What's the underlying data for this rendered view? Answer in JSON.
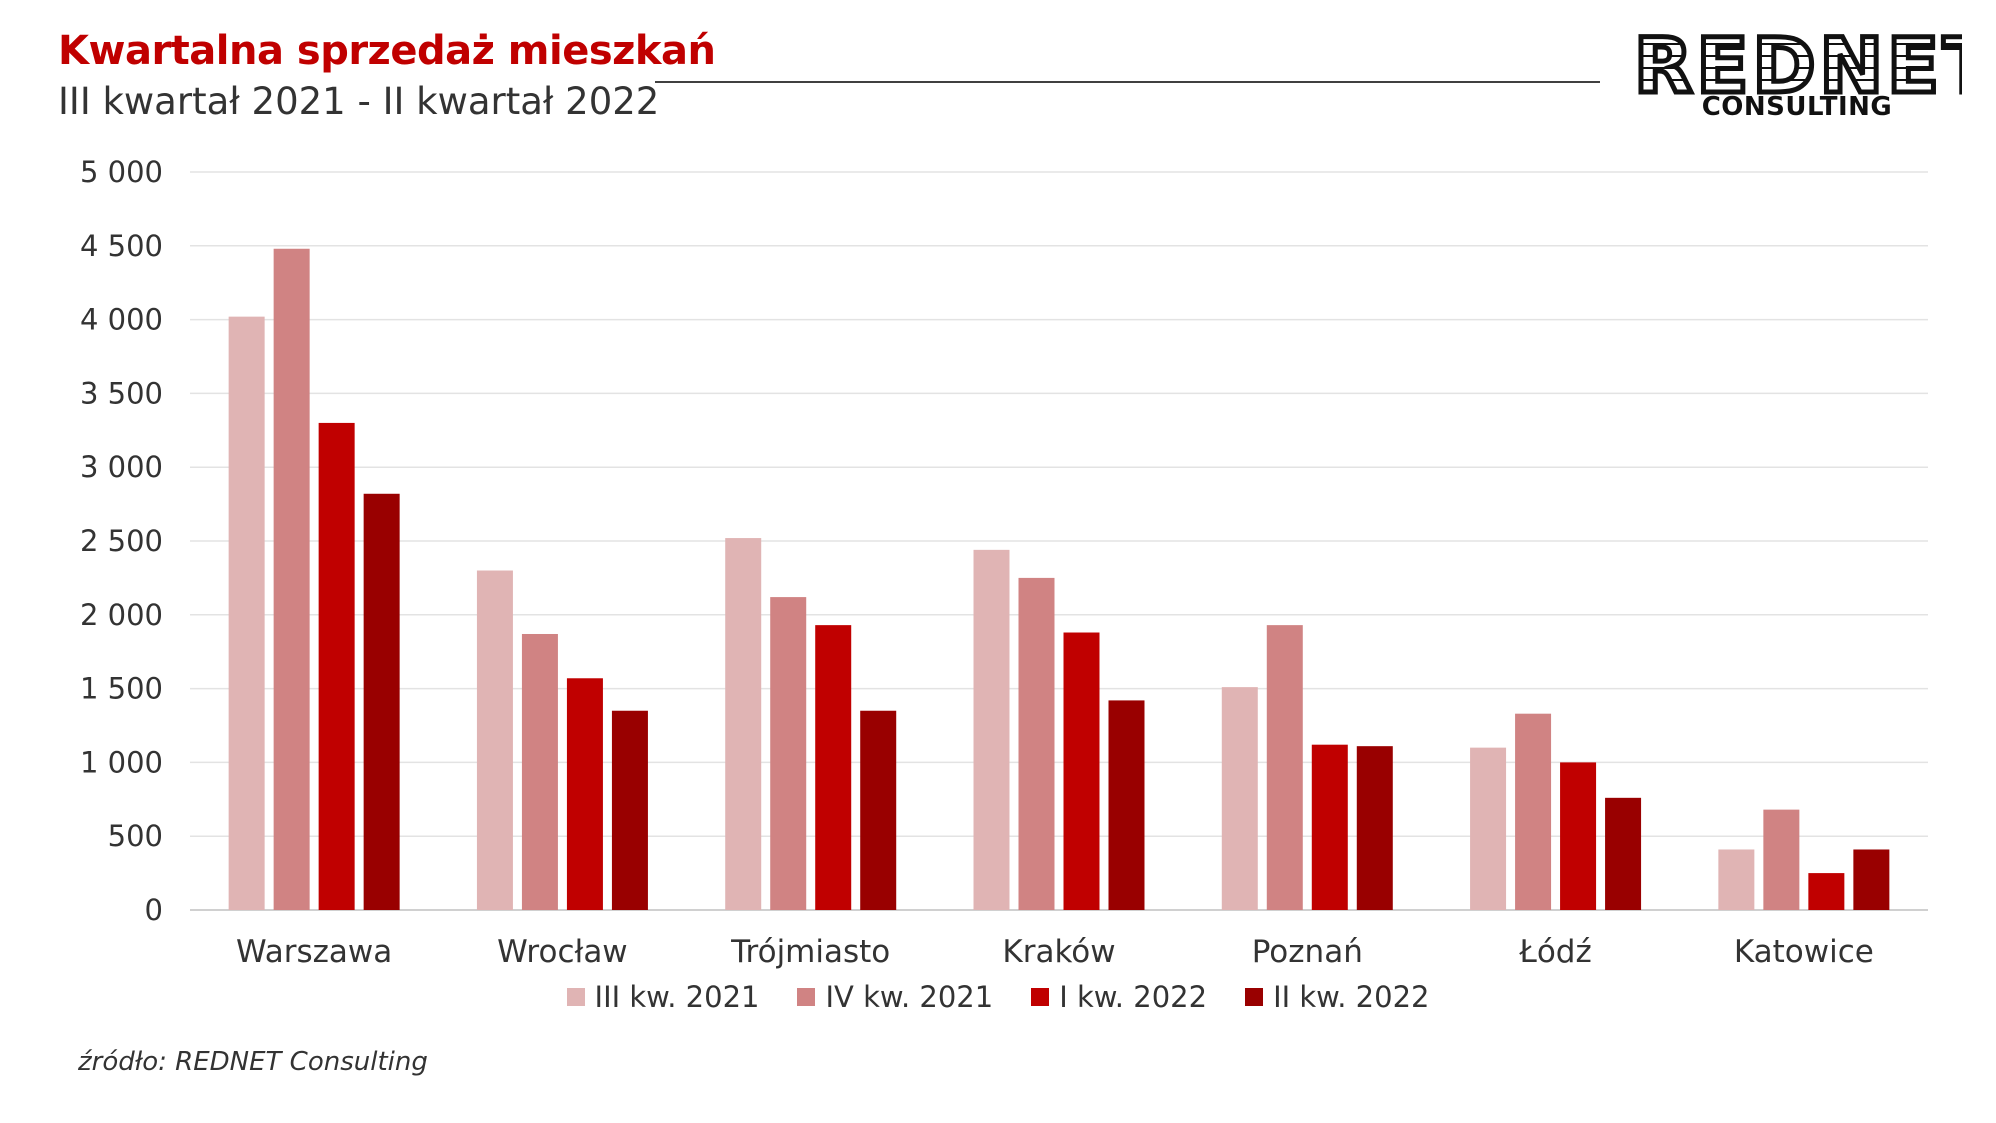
{
  "header": {
    "title": "Kwartalna sprzedaż mieszkań",
    "subtitle": "III kwartał 2021 - II kwartał 2022"
  },
  "logo": {
    "main": "REDNET",
    "sub": "CONSULTING"
  },
  "source": "źródło: REDNET Consulting",
  "colors": {
    "title": "#c00000",
    "series": [
      "#e0b4b4",
      "#d08383",
      "#c00000",
      "#990000"
    ]
  },
  "chart_data": {
    "type": "bar",
    "title": "Kwartalna sprzedaż mieszkań",
    "subtitle": "III kwartał 2021 - II kwartał 2022",
    "categories": [
      "Warszawa",
      "Wrocław",
      "Trójmiasto",
      "Kraków",
      "Poznań",
      "Łódź",
      "Katowice"
    ],
    "series": [
      {
        "name": "III kw. 2021",
        "values": [
          4020,
          2300,
          2520,
          2440,
          1510,
          1100,
          410
        ]
      },
      {
        "name": "IV kw. 2021",
        "values": [
          4480,
          1870,
          2120,
          2250,
          1930,
          1330,
          680
        ]
      },
      {
        "name": "I kw. 2022",
        "values": [
          3300,
          1570,
          1930,
          1880,
          1120,
          1000,
          250
        ]
      },
      {
        "name": "II kw. 2022",
        "values": [
          2820,
          1350,
          1350,
          1420,
          1110,
          760,
          410
        ]
      }
    ],
    "ylim": [
      0,
      5000
    ],
    "yticks": [
      0,
      500,
      1000,
      1500,
      2000,
      2500,
      3000,
      3500,
      4000,
      4500,
      5000
    ],
    "ytick_labels": [
      "0",
      "500",
      "1 000",
      "1 500",
      "2 000",
      "2 500",
      "3 000",
      "3 500",
      "4 000",
      "4 500",
      "5 000"
    ],
    "grid": true,
    "legend_position": "bottom"
  }
}
